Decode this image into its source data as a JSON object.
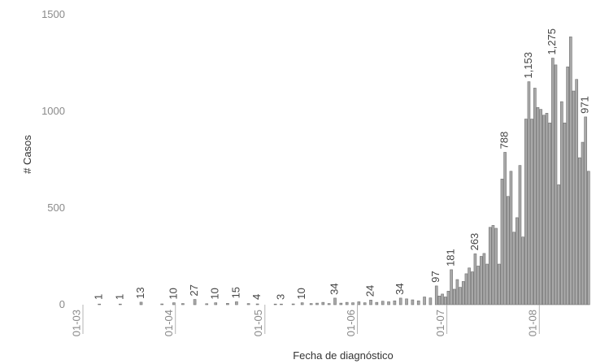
{
  "chart_data": {
    "type": "bar",
    "title": "",
    "xlabel": "Fecha de diagnóstico",
    "ylabel": "# Casos",
    "ylim": [
      0,
      1500
    ],
    "y_ticks": [
      0,
      500,
      1000,
      1500
    ],
    "x_range": [
      "2020-03-01",
      "2020-08-20"
    ],
    "x_ticks": [
      {
        "date": "2020-03-01",
        "label": "01-03"
      },
      {
        "date": "2020-04-01",
        "label": "01-04"
      },
      {
        "date": "2020-05-01",
        "label": "01-05"
      },
      {
        "date": "2020-06-01",
        "label": "01-06"
      },
      {
        "date": "2020-07-01",
        "label": "01-07"
      },
      {
        "date": "2020-08-01",
        "label": "01-08"
      }
    ],
    "grid": false,
    "colors": {
      "bar_fill": "#a9a9a9",
      "bar_stroke": "#6f6f6f"
    },
    "points": [
      {
        "date": "2020-03-06",
        "value": 1,
        "label": "1"
      },
      {
        "date": "2020-03-13",
        "value": 1,
        "label": "1"
      },
      {
        "date": "2020-03-20",
        "value": 13,
        "label": "13"
      },
      {
        "date": "2020-03-27",
        "value": 4
      },
      {
        "date": "2020-03-31",
        "value": 10,
        "label": "10"
      },
      {
        "date": "2020-04-03",
        "value": 6
      },
      {
        "date": "2020-04-07",
        "value": 27,
        "label": "27"
      },
      {
        "date": "2020-04-11",
        "value": 5
      },
      {
        "date": "2020-04-14",
        "value": 10,
        "label": "10"
      },
      {
        "date": "2020-04-18",
        "value": 7
      },
      {
        "date": "2020-04-21",
        "value": 15,
        "label": "15"
      },
      {
        "date": "2020-04-25",
        "value": 6
      },
      {
        "date": "2020-04-28",
        "value": 4,
        "label": "4"
      },
      {
        "date": "2020-05-04",
        "value": 2
      },
      {
        "date": "2020-05-06",
        "value": 3,
        "label": "3"
      },
      {
        "date": "2020-05-10",
        "value": 4
      },
      {
        "date": "2020-05-13",
        "value": 10,
        "label": "10"
      },
      {
        "date": "2020-05-16",
        "value": 6
      },
      {
        "date": "2020-05-18",
        "value": 8
      },
      {
        "date": "2020-05-20",
        "value": 12
      },
      {
        "date": "2020-05-22",
        "value": 6
      },
      {
        "date": "2020-05-24",
        "value": 34,
        "label": "34"
      },
      {
        "date": "2020-05-26",
        "value": 8
      },
      {
        "date": "2020-05-28",
        "value": 12
      },
      {
        "date": "2020-05-30",
        "value": 10
      },
      {
        "date": "2020-06-01",
        "value": 15
      },
      {
        "date": "2020-06-03",
        "value": 10
      },
      {
        "date": "2020-06-05",
        "value": 24,
        "label": "24"
      },
      {
        "date": "2020-06-07",
        "value": 12
      },
      {
        "date": "2020-06-09",
        "value": 18
      },
      {
        "date": "2020-06-11",
        "value": 15
      },
      {
        "date": "2020-06-13",
        "value": 20
      },
      {
        "date": "2020-06-15",
        "value": 34,
        "label": "34"
      },
      {
        "date": "2020-06-17",
        "value": 30
      },
      {
        "date": "2020-06-19",
        "value": 25
      },
      {
        "date": "2020-06-21",
        "value": 20
      },
      {
        "date": "2020-06-23",
        "value": 40
      },
      {
        "date": "2020-06-25",
        "value": 35
      },
      {
        "date": "2020-06-27",
        "value": 97,
        "label": "97"
      },
      {
        "date": "2020-06-28",
        "value": 45
      },
      {
        "date": "2020-06-29",
        "value": 55
      },
      {
        "date": "2020-06-30",
        "value": 40
      },
      {
        "date": "2020-07-01",
        "value": 70
      },
      {
        "date": "2020-07-02",
        "value": 181,
        "label": "181"
      },
      {
        "date": "2020-07-03",
        "value": 80
      },
      {
        "date": "2020-07-04",
        "value": 130
      },
      {
        "date": "2020-07-05",
        "value": 90
      },
      {
        "date": "2020-07-06",
        "value": 120
      },
      {
        "date": "2020-07-07",
        "value": 160
      },
      {
        "date": "2020-07-08",
        "value": 190
      },
      {
        "date": "2020-07-09",
        "value": 170
      },
      {
        "date": "2020-07-10",
        "value": 263,
        "label": "263"
      },
      {
        "date": "2020-07-11",
        "value": 200
      },
      {
        "date": "2020-07-12",
        "value": 250
      },
      {
        "date": "2020-07-13",
        "value": 265
      },
      {
        "date": "2020-07-14",
        "value": 210
      },
      {
        "date": "2020-07-15",
        "value": 400
      },
      {
        "date": "2020-07-16",
        "value": 410
      },
      {
        "date": "2020-07-17",
        "value": 395
      },
      {
        "date": "2020-07-18",
        "value": 210
      },
      {
        "date": "2020-07-19",
        "value": 650
      },
      {
        "date": "2020-07-20",
        "value": 788,
        "label": "788"
      },
      {
        "date": "2020-07-21",
        "value": 560
      },
      {
        "date": "2020-07-22",
        "value": 690
      },
      {
        "date": "2020-07-23",
        "value": 375
      },
      {
        "date": "2020-07-24",
        "value": 450
      },
      {
        "date": "2020-07-25",
        "value": 720
      },
      {
        "date": "2020-07-26",
        "value": 350
      },
      {
        "date": "2020-07-27",
        "value": 960
      },
      {
        "date": "2020-07-28",
        "value": 1153,
        "label": "1,153"
      },
      {
        "date": "2020-07-29",
        "value": 960
      },
      {
        "date": "2020-07-30",
        "value": 1120
      },
      {
        "date": "2020-07-31",
        "value": 1020
      },
      {
        "date": "2020-08-01",
        "value": 1010
      },
      {
        "date": "2020-08-02",
        "value": 980
      },
      {
        "date": "2020-08-03",
        "value": 990
      },
      {
        "date": "2020-08-04",
        "value": 940
      },
      {
        "date": "2020-08-05",
        "value": 1275,
        "label": "1,275"
      },
      {
        "date": "2020-08-06",
        "value": 1240
      },
      {
        "date": "2020-08-07",
        "value": 620
      },
      {
        "date": "2020-08-08",
        "value": 1050
      },
      {
        "date": "2020-08-09",
        "value": 940
      },
      {
        "date": "2020-08-10",
        "value": 1230
      },
      {
        "date": "2020-08-11",
        "value": 1385
      },
      {
        "date": "2020-08-12",
        "value": 1105
      },
      {
        "date": "2020-08-13",
        "value": 1165
      },
      {
        "date": "2020-08-14",
        "value": 760
      },
      {
        "date": "2020-08-15",
        "value": 840
      },
      {
        "date": "2020-08-16",
        "value": 971,
        "label": "971"
      },
      {
        "date": "2020-08-17",
        "value": 690
      }
    ]
  }
}
